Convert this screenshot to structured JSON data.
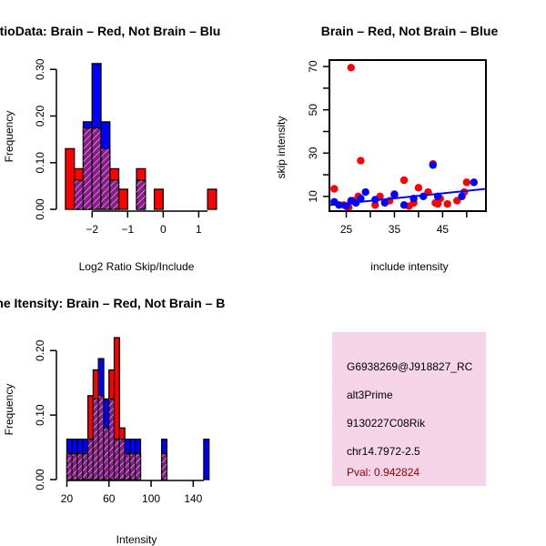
{
  "colors": {
    "red": "#ff0000",
    "blue": "#0000ff",
    "purple": "#8b1a8b",
    "info_bg": "#f7d8ea",
    "pval": "#8b0000"
  },
  "chart_data": [
    {
      "type": "bar",
      "id": "ratio",
      "title": "RatioData: Brain – Red, Not Brain – Blu",
      "xlabel": "Log2 Ratio Skip/Include",
      "ylabel": "Frequency",
      "xlim": [
        -2.8,
        1.4
      ],
      "ylim": [
        0,
        0.32
      ],
      "xticks": [
        -2,
        -1,
        0,
        1
      ],
      "yticks": [
        0.0,
        0.1,
        0.2,
        0.3
      ],
      "bin_width": 0.25,
      "bins_start": [
        -2.75,
        -2.5,
        -2.25,
        -2.0,
        -1.75,
        -1.5,
        -1.25,
        -1.0,
        -0.75,
        -0.5,
        -0.25,
        0.0,
        0.25,
        0.5,
        0.75,
        1.0,
        1.25
      ],
      "series": [
        {
          "name": "Brain",
          "color": "red",
          "values": [
            0.13,
            0.087,
            0.174,
            0.174,
            0.13,
            0.087,
            0.043,
            0.0,
            0.087,
            0.0,
            0.043,
            0.0,
            0.0,
            0.0,
            0.0,
            0.0,
            0.043
          ]
        },
        {
          "name": "Not Brain",
          "color": "blue",
          "values": [
            0.0,
            0.0625,
            0.1875,
            0.3125,
            0.1875,
            0.0625,
            0.0,
            0.0,
            0.0625,
            0.0,
            0.0,
            0.0,
            0.0,
            0.0,
            0.0,
            0.0,
            0.0
          ]
        }
      ]
    },
    {
      "type": "scatter",
      "id": "scatter",
      "title": "Brain – Red, Not Brain – Blue",
      "xlabel": "include intensity",
      "ylabel": "skip intensity",
      "xlim": [
        21.5,
        54
      ],
      "ylim": [
        3.2,
        73
      ],
      "xticks": [
        25,
        35,
        45
      ],
      "yticks": [
        10,
        30,
        50,
        70
      ],
      "series": [
        {
          "name": "Brain",
          "color": "red",
          "points": [
            [
              22.5,
              13.5
            ],
            [
              24.5,
              6
            ],
            [
              25.5,
              5
            ],
            [
              26.0,
              69.5
            ],
            [
              26.5,
              8
            ],
            [
              27.5,
              10
            ],
            [
              28.0,
              26.5
            ],
            [
              31,
              6
            ],
            [
              32,
              10
            ],
            [
              34,
              8
            ],
            [
              35,
              10.5
            ],
            [
              37,
              17.5
            ],
            [
              38,
              5.5
            ],
            [
              39,
              7
            ],
            [
              40,
              14
            ],
            [
              42,
              12
            ],
            [
              43,
              25
            ],
            [
              43.5,
              7
            ],
            [
              44,
              6.5
            ],
            [
              44.5,
              9
            ],
            [
              46,
              6.5
            ],
            [
              48,
              8
            ],
            [
              49.5,
              12
            ],
            [
              50,
              16.5
            ]
          ]
        },
        {
          "name": "Not Brain",
          "color": "blue",
          "points": [
            [
              22.5,
              7.5
            ],
            [
              23.5,
              6
            ],
            [
              25,
              5.5
            ],
            [
              26,
              8
            ],
            [
              27,
              7
            ],
            [
              28,
              9
            ],
            [
              29,
              12
            ],
            [
              31,
              8.5
            ],
            [
              33,
              7
            ],
            [
              35,
              11
            ],
            [
              37,
              6
            ],
            [
              39,
              9
            ],
            [
              41,
              10
            ],
            [
              43,
              24.5
            ],
            [
              44,
              10
            ],
            [
              49,
              10
            ],
            [
              51.5,
              16.5
            ]
          ]
        }
      ],
      "fit_line": {
        "color": "blue",
        "from": [
          21.5,
          6
        ],
        "to": [
          54,
          13.5
        ]
      }
    },
    {
      "type": "bar",
      "id": "intensity",
      "title": "Gene Itensity: Brain – Red, Not Brain – B",
      "xlabel": "Intensity",
      "ylabel": "Frequency",
      "xlim": [
        17,
        157
      ],
      "ylim": [
        0,
        0.23
      ],
      "xticks": [
        20,
        60,
        100,
        140
      ],
      "yticks": [
        0.0,
        0.1,
        0.2
      ],
      "bin_width": 5,
      "bins_start": [
        20,
        25,
        30,
        35,
        40,
        45,
        50,
        55,
        60,
        65,
        70,
        75,
        80,
        85,
        90,
        95,
        100,
        105,
        110,
        115,
        120,
        125,
        130,
        135,
        140,
        145,
        150
      ],
      "series": [
        {
          "name": "Brain",
          "color": "red",
          "values": [
            0.04,
            0.04,
            0.04,
            0.04,
            0.13,
            0.17,
            0.13,
            0.08,
            0.17,
            0.22,
            0.08,
            0.04,
            0.04,
            0.04,
            0.0,
            0.0,
            0.0,
            0.0,
            0.04,
            0.0,
            0.0,
            0.0,
            0.0,
            0.0,
            0.0,
            0.0,
            0.0
          ]
        },
        {
          "name": "Not Brain",
          "color": "blue",
          "values": [
            0.0625,
            0.0625,
            0.0625,
            0.0625,
            0.0625,
            0.125,
            0.1875,
            0.125,
            0.125,
            0.0625,
            0.0625,
            0.0625,
            0.0625,
            0.0625,
            0.0,
            0.0,
            0.0,
            0.0,
            0.0625,
            0.0,
            0.0,
            0.0,
            0.0,
            0.0,
            0.0,
            0.0,
            0.0625
          ]
        }
      ]
    }
  ],
  "info_panel": {
    "lines": [
      "G6938269@J918827_RC",
      "alt3Prime",
      "9130227C08Rik",
      "chr14.7972-2.5"
    ],
    "pval": "Pval: 0.942824"
  }
}
